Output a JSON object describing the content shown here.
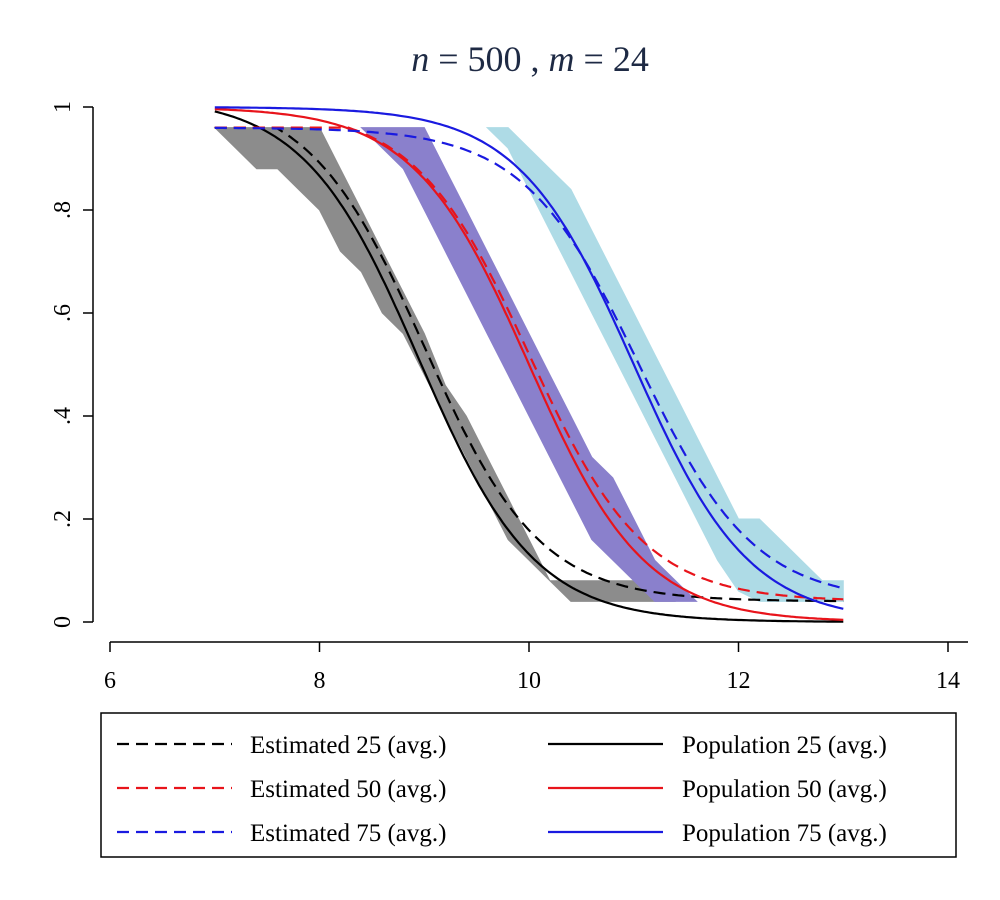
{
  "chart_data": {
    "type": "line",
    "title": {
      "n_symbol": "n",
      "n_value": "500",
      "m_symbol": "m",
      "m_value": "24"
    },
    "xlabel": "",
    "ylabel": "",
    "xlim": [
      6,
      14
    ],
    "ylim": [
      0,
      1
    ],
    "x_ticks": [
      {
        "value": 6,
        "label": "6"
      },
      {
        "value": 8,
        "label": "8"
      },
      {
        "value": 10,
        "label": "10"
      },
      {
        "value": 12,
        "label": "12"
      },
      {
        "value": 14,
        "label": "14"
      }
    ],
    "y_ticks": [
      {
        "value": 0,
        "label": "0"
      },
      {
        "value": 0.2,
        "label": ".2"
      },
      {
        "value": 0.4,
        "label": ".4"
      },
      {
        "value": 0.6,
        "label": ".6"
      },
      {
        "value": 0.8,
        "label": ".8"
      },
      {
        "value": 1,
        "label": "1"
      }
    ],
    "x_domain": [
      7,
      13
    ],
    "bands": [
      {
        "name": "band-25",
        "color": "#8c8c8c",
        "x": [
          7.0,
          7.2,
          7.4,
          7.6,
          7.8,
          8.0,
          8.2,
          8.4,
          8.6,
          8.8,
          9.0,
          9.2,
          9.4,
          9.6,
          9.8,
          10.0,
          10.2,
          10.4,
          10.6,
          10.8,
          11.0,
          11.2,
          11.4
        ],
        "upper": [
          0.96,
          0.96,
          0.96,
          0.96,
          0.96,
          0.96,
          0.88,
          0.8,
          0.72,
          0.64,
          0.56,
          0.46,
          0.4,
          0.32,
          0.24,
          0.16,
          0.08,
          0.08,
          0.08,
          0.08,
          0.08,
          0.04,
          0.04
        ],
        "lower": [
          0.96,
          0.92,
          0.88,
          0.88,
          0.84,
          0.8,
          0.72,
          0.68,
          0.6,
          0.56,
          0.48,
          0.4,
          0.32,
          0.24,
          0.16,
          0.12,
          0.08,
          0.04,
          0.04,
          0.04,
          0.04,
          0.04,
          0.04
        ]
      },
      {
        "name": "band-50",
        "color": "#8a80cc",
        "x": [
          8.4,
          8.6,
          8.8,
          9.0,
          9.2,
          9.4,
          9.6,
          9.8,
          10.0,
          10.2,
          10.4,
          10.6,
          10.8,
          11.0,
          11.2,
          11.4,
          11.6
        ],
        "upper": [
          0.96,
          0.96,
          0.96,
          0.96,
          0.88,
          0.8,
          0.72,
          0.64,
          0.56,
          0.48,
          0.4,
          0.32,
          0.28,
          0.2,
          0.12,
          0.08,
          0.04
        ],
        "lower": [
          0.96,
          0.92,
          0.88,
          0.8,
          0.72,
          0.64,
          0.56,
          0.48,
          0.4,
          0.32,
          0.24,
          0.16,
          0.12,
          0.08,
          0.04,
          0.04,
          0.04
        ]
      },
      {
        "name": "band-75",
        "color": "#aedbe6",
        "x": [
          9.6,
          9.8,
          10.0,
          10.2,
          10.4,
          10.6,
          10.8,
          11.0,
          11.2,
          11.4,
          11.6,
          11.8,
          12.0,
          12.2,
          12.4,
          12.6,
          12.8,
          13.0
        ],
        "upper": [
          0.96,
          0.96,
          0.92,
          0.88,
          0.84,
          0.76,
          0.68,
          0.6,
          0.52,
          0.44,
          0.36,
          0.28,
          0.2,
          0.2,
          0.16,
          0.12,
          0.08,
          0.08
        ],
        "lower": [
          0.96,
          0.92,
          0.84,
          0.76,
          0.68,
          0.6,
          0.52,
          0.44,
          0.36,
          0.28,
          0.2,
          0.12,
          0.06,
          0.04,
          0.04,
          0.04,
          0.04,
          0.04
        ]
      }
    ],
    "series": [
      {
        "name": "Estimated 25 (avg.)",
        "color": "#000000",
        "dash": true,
        "logistic": {
          "location": 9.0,
          "scale": 0.55,
          "lower": 0.04,
          "upper": 1.03
        }
      },
      {
        "name": "Population 25 (avg.)",
        "color": "#000000",
        "dash": false,
        "logistic": {
          "location": 8.95,
          "scale": 0.55,
          "lower": 0.0,
          "upper": 1.02
        }
      },
      {
        "name": "Estimated 50 (avg.)",
        "color": "#e8141b",
        "dash": true,
        "logistic": {
          "location": 10.0,
          "scale": 0.55,
          "lower": 0.04,
          "upper": 1.0
        }
      },
      {
        "name": "Population 50 (avg.)",
        "color": "#e8141b",
        "dash": false,
        "logistic": {
          "location": 10.0,
          "scale": 0.55,
          "lower": 0.0,
          "upper": 1.0
        }
      },
      {
        "name": "Estimated 75 (avg.)",
        "color": "#1a1ae0",
        "dash": true,
        "logistic": {
          "location": 11.05,
          "scale": 0.55,
          "lower": 0.04,
          "upper": 0.96
        }
      },
      {
        "name": "Population 75 (avg.)",
        "color": "#1a1ae0",
        "dash": false,
        "logistic": {
          "location": 11.0,
          "scale": 0.55,
          "lower": 0.0,
          "upper": 1.0
        }
      }
    ],
    "legend": {
      "position": "bottom",
      "columns": 2,
      "entries": [
        {
          "label": "Estimated 25 (avg.)",
          "color": "#000000",
          "dash": true
        },
        {
          "label": "Population 25 (avg.)",
          "color": "#000000",
          "dash": false
        },
        {
          "label": "Estimated 50 (avg.)",
          "color": "#e8141b",
          "dash": true
        },
        {
          "label": "Population 50 (avg.)",
          "color": "#e8141b",
          "dash": false
        },
        {
          "label": "Estimated 75 (avg.)",
          "color": "#1a1ae0",
          "dash": true
        },
        {
          "label": "Population 75 (avg.)",
          "color": "#1a1ae0",
          "dash": false
        }
      ]
    },
    "grid": false
  }
}
